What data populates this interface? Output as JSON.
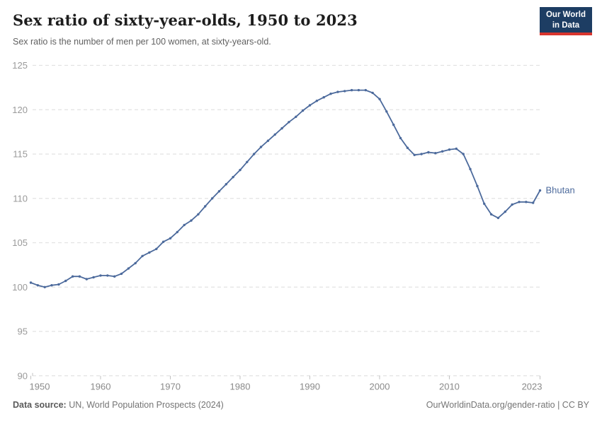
{
  "header": {
    "title": "Sex ratio of sixty-year-olds, 1950 to 2023",
    "subtitle": "Sex ratio is the number of men per 100 women, at sixty-years-old.",
    "logo": {
      "line1": "Our World",
      "line2": "in Data"
    }
  },
  "chart_data": {
    "type": "line",
    "title": "Sex ratio of sixty-year-olds, 1950 to 2023",
    "xlabel": "",
    "ylabel": "",
    "xlim": [
      1950,
      2023
    ],
    "ylim": [
      90,
      125
    ],
    "x_ticks": [
      1950,
      1960,
      1970,
      1980,
      1990,
      2000,
      2010,
      2023
    ],
    "y_ticks": [
      90,
      95,
      100,
      105,
      110,
      115,
      120,
      125
    ],
    "grid": "horizontal-dashed",
    "legend_position": "label-at-line-end",
    "x": [
      1950,
      1951,
      1952,
      1953,
      1954,
      1955,
      1956,
      1957,
      1958,
      1959,
      1960,
      1961,
      1962,
      1963,
      1964,
      1965,
      1966,
      1967,
      1968,
      1969,
      1970,
      1971,
      1972,
      1973,
      1974,
      1975,
      1976,
      1977,
      1978,
      1979,
      1980,
      1981,
      1982,
      1983,
      1984,
      1985,
      1986,
      1987,
      1988,
      1989,
      1990,
      1991,
      1992,
      1993,
      1994,
      1995,
      1996,
      1997,
      1998,
      1999,
      2000,
      2001,
      2002,
      2003,
      2004,
      2005,
      2006,
      2007,
      2008,
      2009,
      2010,
      2011,
      2012,
      2013,
      2014,
      2015,
      2016,
      2017,
      2018,
      2019,
      2020,
      2021,
      2022,
      2023
    ],
    "series": [
      {
        "name": "Bhutan",
        "color": "#4c6a9c",
        "values": [
          100.5,
          100.2,
          100.0,
          100.2,
          100.3,
          100.7,
          101.2,
          101.2,
          100.9,
          101.1,
          101.3,
          101.3,
          101.2,
          101.5,
          102.1,
          102.7,
          103.5,
          103.9,
          104.3,
          105.1,
          105.5,
          106.2,
          107.0,
          107.5,
          108.2,
          109.1,
          110.0,
          110.8,
          111.6,
          112.4,
          113.2,
          114.1,
          115.0,
          115.8,
          116.5,
          117.2,
          117.9,
          118.6,
          119.2,
          119.9,
          120.5,
          121.0,
          121.4,
          121.8,
          122.0,
          122.1,
          122.2,
          122.2,
          122.2,
          121.9,
          121.2,
          119.8,
          118.3,
          116.8,
          115.7,
          114.9,
          115.0,
          115.2,
          115.1,
          115.3,
          115.5,
          115.6,
          115.0,
          113.3,
          111.4,
          109.4,
          108.2,
          107.8,
          108.5,
          109.3,
          109.6,
          109.6,
          109.5,
          110.9
        ]
      }
    ]
  },
  "footer": {
    "source_label": "Data source:",
    "source_text": "UN, World Population Prospects (2024)",
    "credit": "OurWorldinData.org/gender-ratio | CC BY"
  },
  "colors": {
    "line": "#4c6a9c",
    "entity_label": "#4c6a9c",
    "logo_bg": "#1d3d63",
    "logo_accent": "#d8352e",
    "gridline": "#e2e2e2",
    "tick": "#c0c0c0",
    "axis_text_y": "#9a9a9a",
    "axis_text_x": "#8a8a8a",
    "title_text": "#1d1d1d",
    "subtitle_text": "#616161"
  }
}
